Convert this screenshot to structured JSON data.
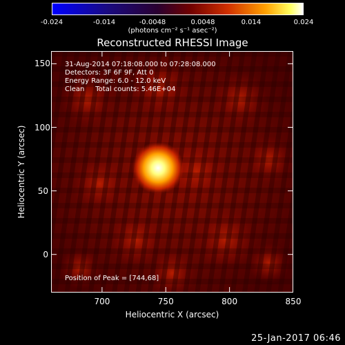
{
  "colorbar": {
    "ticks": [
      "-0.024",
      "-0.014",
      "-0.0048",
      "0.0048",
      "0.014",
      "0.024"
    ],
    "tick_values": [
      -0.024,
      -0.014,
      -0.0048,
      0.0048,
      0.014,
      0.024
    ],
    "range": [
      -0.024,
      0.024
    ],
    "units_text": "(photons cm⁻² s⁻¹ asec⁻²)",
    "colormap": [
      "#0000ff",
      "#000000",
      "#d00000",
      "#ff8000",
      "#ffff40",
      "#ffffff"
    ]
  },
  "chart_data": {
    "type": "heatmap",
    "title": "Reconstructed RHESSI Image",
    "xlabel": "Heliocentric X (arcsec)",
    "ylabel": "Heliocentric Y (arcsec)",
    "xlim": [
      660,
      850
    ],
    "ylim": [
      -30,
      160
    ],
    "xticks": [
      "700",
      "750",
      "800",
      "850"
    ],
    "xtick_values": [
      700,
      750,
      800,
      850
    ],
    "yticks": [
      "0",
      "50",
      "100",
      "150"
    ],
    "ytick_values": [
      0,
      50,
      100,
      150
    ],
    "peak": [
      744,
      68
    ],
    "annotations": {
      "time": "31-Aug-2014 07:18:08.000 to 07:28:08.000",
      "detectors": "Detectors: 3F 6F 9F, Att 0",
      "energy": "Energy Range: 6.0 - 12.0 keV",
      "clean": "Clean     Total counts: 5.46E+04",
      "peak_text": "Position of Peak = [744,68]"
    }
  },
  "timestamp": "25-Jan-2017 06:46"
}
